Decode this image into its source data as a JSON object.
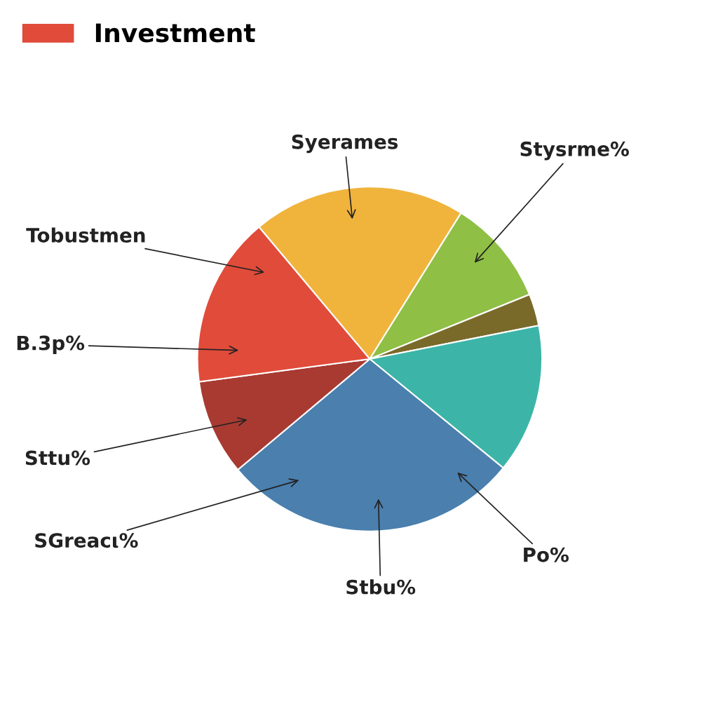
{
  "chart_data": {
    "type": "pie",
    "categories": [
      null,
      null,
      null,
      null,
      null,
      null,
      "Investment"
    ],
    "values": [
      20,
      10,
      3,
      14,
      28,
      9,
      16
    ],
    "colors": [
      "#f0b43c",
      "#8fbf45",
      "#7a6a2a",
      "#3cb5a8",
      "#4a7fae",
      "#a83a32",
      "#e04b3a"
    ],
    "legend": "top left",
    "annotations": [
      "Syerames",
      "Stysrme%",
      "Tobustmen",
      "B.3p%",
      "Sttu%",
      "SGreacι%",
      "Stbu%",
      "Po%"
    ]
  }
}
